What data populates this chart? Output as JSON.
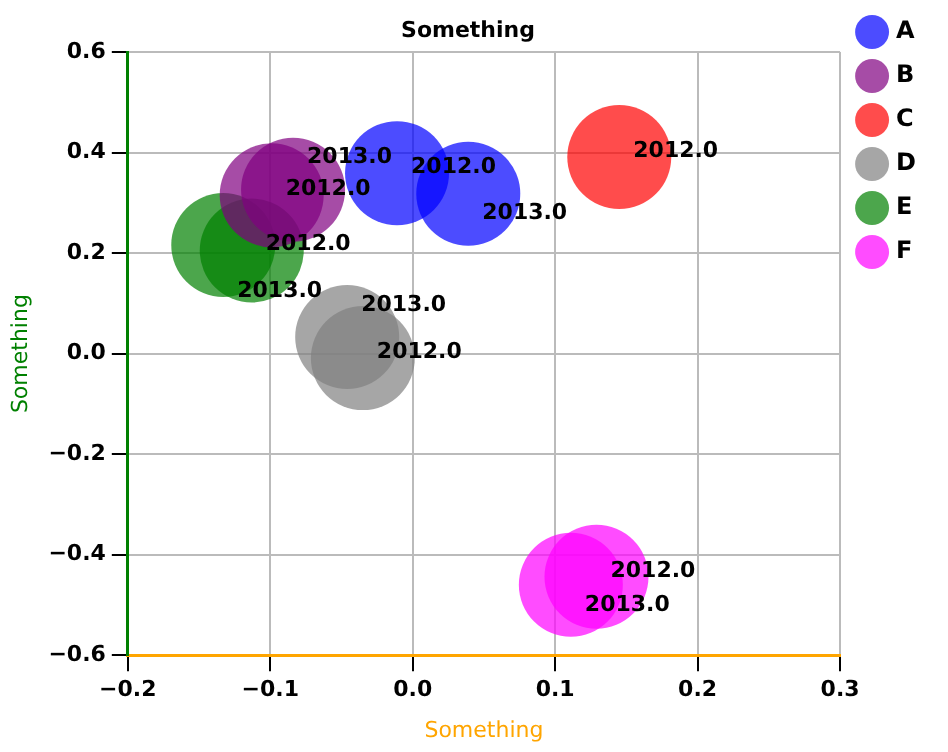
{
  "chart_data": {
    "type": "bubble",
    "title": "Something",
    "xlabel": "Something",
    "ylabel": "Something",
    "xlim": [
      -0.2,
      0.3
    ],
    "xticks": [
      {
        "value": -0.2,
        "label": "−0.2"
      },
      {
        "value": -0.1,
        "label": "−0.1"
      },
      {
        "value": 0,
        "label": "0.0"
      },
      {
        "value": 0.1,
        "label": "0.1"
      },
      {
        "value": 0.2,
        "label": "0.2"
      },
      {
        "value": 0.3,
        "label": "0.3"
      }
    ],
    "ylim": [
      -0.6,
      0.6
    ],
    "yticks": [
      {
        "value": -0.6,
        "label": "−0.6"
      },
      {
        "value": -0.4,
        "label": "−0.4"
      },
      {
        "value": -0.2,
        "label": "−0.2"
      },
      {
        "value": 0,
        "label": "0.0"
      },
      {
        "value": 0.2,
        "label": "0.2"
      },
      {
        "value": 0.4,
        "label": "0.4"
      },
      {
        "value": 0.6,
        "label": "0.6"
      }
    ],
    "grid": true,
    "legend": "top right",
    "marker": "circle",
    "series": [
      {
        "name": "A",
        "color": "#0000ff",
        "x": [
          -0.011,
          0.039
        ],
        "values": [
          0.359,
          0.318
        ],
        "sizes": [
          1,
          1
        ]
      },
      {
        "name": "B",
        "color": "#800080",
        "x": [
          -0.099,
          -0.084
        ],
        "values": [
          0.315,
          0.326
        ],
        "sizes": [
          1,
          1
        ]
      },
      {
        "name": "C",
        "color": "#ff0000",
        "x": [
          0.145
        ],
        "values": [
          0.391
        ],
        "sizes": [
          1
        ]
      },
      {
        "name": "D",
        "color": "#808080",
        "x": [
          -0.035,
          -0.046
        ],
        "values": [
          -0.009,
          0.033
        ],
        "sizes": [
          1,
          1
        ]
      },
      {
        "name": "E",
        "color": "#008000",
        "x": [
          -0.113,
          -0.133
        ],
        "values": [
          0.205,
          0.216
        ],
        "sizes": [
          1,
          1
        ]
      },
      {
        "name": "F",
        "color": "#ff00ff",
        "x": [
          0.129,
          0.111
        ],
        "values": [
          -0.444,
          -0.46
        ],
        "sizes": [
          1,
          1
        ]
      }
    ],
    "annotations": [
      {
        "text": "2012.0",
        "x": -0.011,
        "y": 0.359
      },
      {
        "text": "2013.0",
        "x": 0.039,
        "y": 0.318
      },
      {
        "text": "2012.0",
        "x": -0.099,
        "y": 0.315
      },
      {
        "text": "2013.0",
        "x": -0.084,
        "y": 0.326
      },
      {
        "text": "2012.0",
        "x": 0.145,
        "y": 0.391
      },
      {
        "text": "2012.0",
        "x": -0.035,
        "y": -0.009
      },
      {
        "text": "2013.0",
        "x": -0.046,
        "y": 0.033
      },
      {
        "text": "2012.0",
        "x": -0.113,
        "y": 0.205
      },
      {
        "text": "2013.0",
        "x": -0.133,
        "y": 0.216
      },
      {
        "text": "2012.0",
        "x": 0.129,
        "y": -0.444
      },
      {
        "text": "2013.0",
        "x": 0.111,
        "y": -0.46
      }
    ]
  }
}
